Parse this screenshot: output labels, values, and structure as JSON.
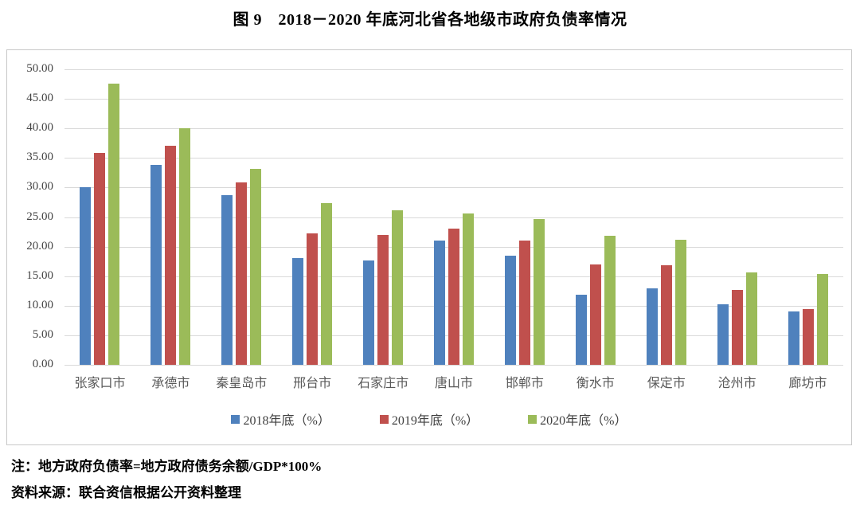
{
  "figure": {
    "title": "图 9　2018－2020 年底河北省各地级市政府负债率情况",
    "note": "注：地方政府负债率=地方政府债务余额/GDP*100%",
    "source": "资料来源：联合资信根据公开资料整理"
  },
  "chart_data": {
    "type": "bar",
    "title": "图 9　2018－2020 年底河北省各地级市政府负债率情况",
    "categories": [
      "张家口市",
      "承德市",
      "秦皇岛市",
      "邢台市",
      "石家庄市",
      "唐山市",
      "邯郸市",
      "衡水市",
      "保定市",
      "沧州市",
      "廊坊市"
    ],
    "series": [
      {
        "name": "2018年底（%）",
        "color": "#4F81BD",
        "values": [
          30.0,
          33.8,
          28.7,
          18.1,
          17.7,
          21.0,
          18.5,
          11.9,
          13.0,
          10.3,
          9.0
        ]
      },
      {
        "name": "2019年底（%）",
        "color": "#C0504D",
        "values": [
          35.9,
          37.0,
          30.8,
          22.2,
          22.0,
          23.0,
          21.0,
          17.0,
          16.8,
          12.7,
          9.4
        ]
      },
      {
        "name": "2020年底（%）",
        "color": "#9BBB59",
        "values": [
          47.6,
          40.0,
          33.1,
          27.4,
          26.2,
          25.6,
          24.7,
          21.9,
          21.1,
          15.7,
          15.3
        ]
      }
    ],
    "xlabel": "",
    "ylabel": "",
    "ylim": [
      0,
      50
    ],
    "ytick_step": 5,
    "ytick_labels": [
      "50.00",
      "45.00",
      "40.00",
      "35.00",
      "30.00",
      "25.00",
      "20.00",
      "15.00",
      "10.00",
      "5.00",
      "0.00"
    ],
    "grid": true,
    "legend_position": "bottom"
  },
  "colors": {
    "series_2018": "#4F81BD",
    "series_2019": "#C0504D",
    "series_2020": "#9BBB59",
    "gridline": "#d9d9d9",
    "frame_border": "#c8c8c8",
    "axis_text": "#444444",
    "category_text": "#595959"
  }
}
